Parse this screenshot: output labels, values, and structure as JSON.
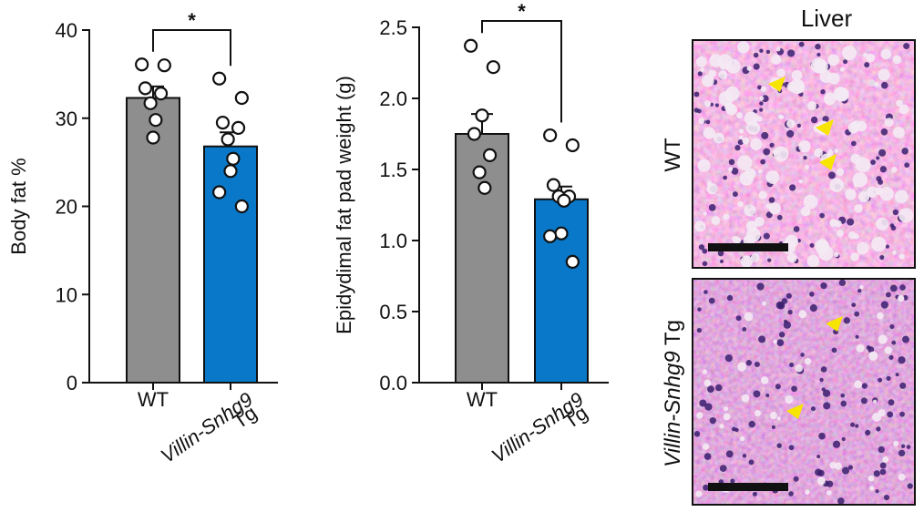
{
  "chart_data": [
    {
      "type": "bar",
      "ylabel": "Body fat %",
      "ylim": [
        0,
        40
      ],
      "yticks": [
        "0",
        "10",
        "20",
        "30",
        "40"
      ],
      "categories": [
        {
          "label": "WT",
          "italic": "",
          "suffix": ""
        },
        {
          "label": "",
          "italic": "Villin-Snhg9",
          "suffix": "Tg"
        }
      ],
      "series": [
        {
          "name": "WT",
          "mean": 32.3,
          "sem": 1.3,
          "color": "#8e8e8e",
          "points": [
            36.1,
            36.0,
            33.4,
            32.8,
            31.7,
            29.8,
            27.8
          ]
        },
        {
          "name": "Villin-Snhg9 Tg",
          "mean": 26.8,
          "sem": 1.6,
          "color": "#0a78c8",
          "points": [
            34.5,
            32.3,
            29.5,
            28.9,
            27.6,
            25.4,
            24.0,
            21.6,
            20.0
          ]
        }
      ],
      "significance": "*"
    },
    {
      "type": "bar",
      "ylabel": "Epidydimal fat pad weight (g)",
      "ylim": [
        0,
        2.5
      ],
      "yticks": [
        "0.0",
        "0.5",
        "1.0",
        "1.5",
        "2.0",
        "2.5"
      ],
      "categories": [
        {
          "label": "WT",
          "italic": "",
          "suffix": ""
        },
        {
          "label": "",
          "italic": "Villin-Snhg9",
          "suffix": "Tg"
        }
      ],
      "series": [
        {
          "name": "WT",
          "mean": 1.75,
          "sem": 0.14,
          "color": "#8e8e8e",
          "points": [
            2.37,
            2.22,
            1.75,
            1.6,
            1.48,
            1.37,
            1.88
          ]
        },
        {
          "name": "Villin-Snhg9 Tg",
          "mean": 1.29,
          "sem": 0.09,
          "color": "#0a78c8",
          "points": [
            1.74,
            1.67,
            1.39,
            1.31,
            1.31,
            1.28,
            1.05,
            1.03,
            0.85
          ]
        }
      ],
      "significance": "*"
    }
  ],
  "histology": {
    "title": "Liver",
    "rows": [
      {
        "label": "WT",
        "italic": "",
        "suffix": ""
      },
      {
        "label": "",
        "italic": "Villin-Snhg9",
        "suffix": " Tg"
      }
    ]
  }
}
